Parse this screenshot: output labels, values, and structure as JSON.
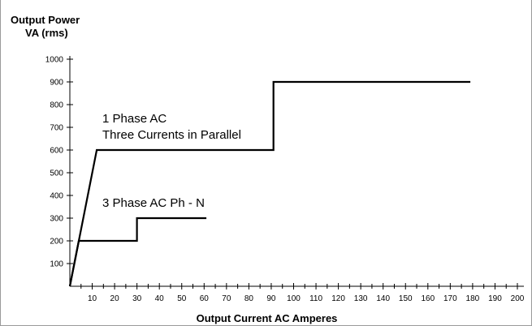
{
  "chart_data": {
    "type": "line",
    "ylabel_lines": [
      "Output Power",
      "VA (rms)"
    ],
    "xlabel": "Output Current AC Amperes",
    "xlim": [
      0,
      200
    ],
    "ylim": [
      0,
      1000
    ],
    "x_ticks": [
      10,
      20,
      30,
      40,
      50,
      60,
      70,
      80,
      90,
      100,
      110,
      120,
      130,
      140,
      150,
      160,
      170,
      180,
      190,
      200
    ],
    "y_ticks": [
      100,
      200,
      300,
      400,
      500,
      600,
      700,
      800,
      900,
      1000
    ],
    "series": [
      {
        "annotation_lines": [
          "1 Phase AC",
          "Three Currents in Parallel"
        ],
        "color": "#000000",
        "points": [
          [
            0,
            0
          ],
          [
            12,
            600
          ],
          [
            91,
            600
          ],
          [
            91,
            900
          ],
          [
            179,
            900
          ]
        ]
      },
      {
        "annotation_lines": [
          "3 Phase AC Ph - N"
        ],
        "color": "#000000",
        "points": [
          [
            0,
            0
          ],
          [
            4,
            200
          ],
          [
            30,
            200
          ],
          [
            30,
            300
          ],
          [
            61,
            300
          ]
        ]
      }
    ],
    "grid": false,
    "legend": "none"
  }
}
